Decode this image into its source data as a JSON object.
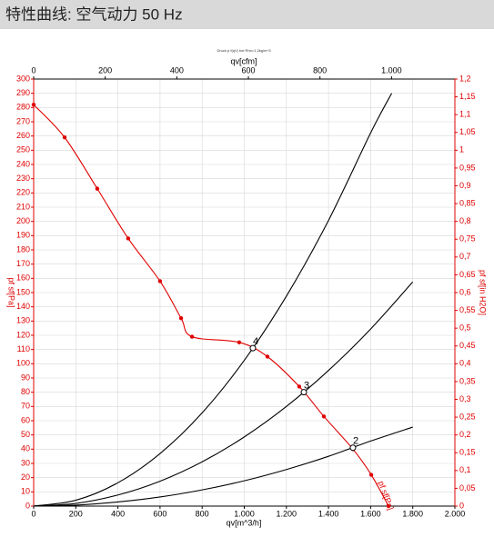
{
  "chart_data": {
    "type": "line",
    "title": "特性曲线: 空气动力 50 Hz",
    "subtitle": "Druck p f(qV) bei Rho=1,2kg/m^3",
    "xlabel": "qv[m^3/h]",
    "x2label": "qv[cfm]",
    "ylabel": "pf sf[Pa]",
    "y2label": "pf sf[in H2O]",
    "xlim": [
      0,
      2000
    ],
    "xticks": [
      0,
      200,
      400,
      600,
      800,
      {
        "value": 1000,
        "label": "1.000"
      },
      {
        "value": 1200,
        "label": "1.200"
      },
      {
        "value": 1400,
        "label": "1.400"
      },
      {
        "value": 1600,
        "label": "1.600"
      },
      {
        "value": 1800,
        "label": "1.800"
      },
      {
        "value": 2000,
        "label": "2.000"
      }
    ],
    "x2lim": [
      0,
      1177
    ],
    "x2ticks": [
      0,
      200,
      400,
      600,
      800,
      {
        "value": 1000,
        "label": "1.000"
      }
    ],
    "ylim": [
      0,
      300
    ],
    "yticks": [
      0,
      10,
      20,
      30,
      40,
      50,
      60,
      70,
      80,
      90,
      100,
      110,
      120,
      130,
      140,
      150,
      160,
      170,
      180,
      190,
      200,
      210,
      220,
      230,
      240,
      250,
      260,
      270,
      280,
      290,
      300
    ],
    "y2lim": [
      0,
      1.2
    ],
    "y2ticks": [
      0,
      {
        "value": 0.05,
        "label": "0,05"
      },
      {
        "value": 0.1,
        "label": "0,1"
      },
      {
        "value": 0.15,
        "label": "0,15"
      },
      {
        "value": 0.2,
        "label": "0,2"
      },
      {
        "value": 0.25,
        "label": "0,25"
      },
      {
        "value": 0.3,
        "label": "0,3"
      },
      {
        "value": 0.35,
        "label": "0,35"
      },
      {
        "value": 0.4,
        "label": "0,4"
      },
      {
        "value": 0.45,
        "label": "0,45"
      },
      {
        "value": 0.5,
        "label": "0,5"
      },
      {
        "value": 0.55,
        "label": "0,55"
      },
      {
        "value": 0.6,
        "label": "0,6"
      },
      {
        "value": 0.65,
        "label": "0,65"
      },
      {
        "value": 0.7,
        "label": "0,7"
      },
      {
        "value": 0.75,
        "label": "0,75"
      },
      {
        "value": 0.8,
        "label": "0,8"
      },
      {
        "value": 0.85,
        "label": "0,85"
      },
      {
        "value": 0.9,
        "label": "0,9"
      },
      {
        "value": 0.95,
        "label": "0,95"
      },
      {
        "value": 1,
        "label": "1"
      },
      {
        "value": 1.05,
        "label": "1,05"
      },
      {
        "value": 1.1,
        "label": "1,1"
      },
      {
        "value": 1.15,
        "label": "1,15"
      },
      {
        "value": 1.2,
        "label": "1,2"
      }
    ],
    "grid": true,
    "series": [
      {
        "name": "pf sf[Pa]",
        "color": "#e00000",
        "markers": true,
        "x": [
          0,
          147,
          302,
          449,
          600,
          700,
          752,
          976,
          1110,
          1261,
          1378,
          1516,
          1603,
          1685
        ],
        "values": [
          282,
          259,
          223,
          188,
          158,
          132,
          119,
          115,
          105,
          84,
          63,
          40,
          22,
          0
        ]
      },
      {
        "color": "#000000",
        "markers": false,
        "x": [
          0,
          200,
          400,
          600,
          800,
          1000,
          1200,
          1400,
          1600,
          1700
        ],
        "values": [
          0,
          4.1,
          16.4,
          36.9,
          65.5,
          102.4,
          147.5,
          200.7,
          262.2,
          290
        ]
      },
      {
        "color": "#000000",
        "markers": false,
        "x": [
          0,
          200,
          400,
          600,
          800,
          1000,
          1200,
          1400,
          1600,
          1800
        ],
        "values": [
          0,
          1.9,
          7.8,
          17.5,
          31.1,
          48.6,
          70,
          95.3,
          124.4,
          157.5
        ]
      },
      {
        "color": "#000000",
        "markers": false,
        "x": [
          0,
          200,
          400,
          600,
          800,
          1000,
          1200,
          1400,
          1600,
          1800
        ],
        "values": [
          0,
          0.7,
          2.9,
          6.4,
          11.4,
          17.8,
          25.7,
          35,
          45.7,
          55.5
        ]
      }
    ],
    "operating_points": [
      {
        "label": "4",
        "x": 1041,
        "y": 111
      },
      {
        "label": "3",
        "x": 1283,
        "y": 80
      },
      {
        "label": "2",
        "x": 1516,
        "y": 41
      }
    ]
  }
}
